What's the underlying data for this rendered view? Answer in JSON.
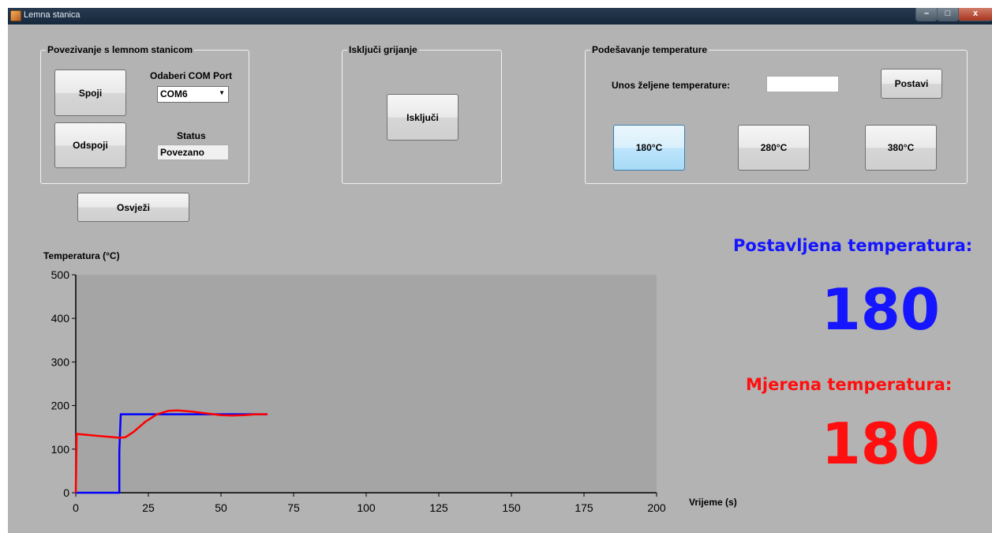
{
  "window": {
    "title": "Lemna stanica",
    "minimize": "–",
    "maximize": "□",
    "close": "x"
  },
  "connection_group": {
    "title": "Povezivanje s lemnom stanicom",
    "connect_button": "Spoji",
    "disconnect_button": "Odspoji",
    "com_port_label": "Odaberi COM Port",
    "com_port_value": "COM6",
    "status_label": "Status",
    "status_value": "Povezano"
  },
  "refresh_button": "Osvježi",
  "heater_group": {
    "title": "Isključi grijanje",
    "off_button": "Isključi"
  },
  "temperature_group": {
    "title": "Podešavanje temperature",
    "input_label": "Unos željene temperature:",
    "input_value": "",
    "set_button": "Postavi",
    "preset_buttons": [
      "180°C",
      "280°C",
      "380°C"
    ]
  },
  "readout": {
    "set_label": "Postavljena temperatura:",
    "set_value": "180",
    "set_color": "#1515ff",
    "measured_label": "Mjerena temperatura:",
    "measured_value": "180",
    "measured_color": "#ff0f0f"
  },
  "chart_data": {
    "type": "line",
    "ylabel": "Temperatura (°C)",
    "xlabel": "Vrijeme (s)",
    "xlim": [
      0,
      200
    ],
    "ylim": [
      0,
      500
    ],
    "xticks": [
      0,
      25,
      50,
      75,
      100,
      125,
      150,
      175,
      200
    ],
    "yticks": [
      0,
      100,
      200,
      300,
      400,
      500
    ],
    "plot_background": "#a5a5a5",
    "series": [
      {
        "color": "#0000ff",
        "points": [
          [
            0,
            0
          ],
          [
            15,
            0
          ],
          [
            15,
            95
          ],
          [
            15.5,
            180
          ],
          [
            66,
            180
          ]
        ]
      },
      {
        "color": "#ff0000",
        "points": [
          [
            0,
            0
          ],
          [
            0.3,
            135
          ],
          [
            5,
            132
          ],
          [
            10,
            129
          ],
          [
            15,
            126
          ],
          [
            17,
            127
          ],
          [
            20,
            140
          ],
          [
            24,
            163
          ],
          [
            28,
            180
          ],
          [
            32,
            188
          ],
          [
            35,
            189
          ],
          [
            40,
            186
          ],
          [
            45,
            182
          ],
          [
            50,
            178
          ],
          [
            54,
            177
          ],
          [
            58,
            178
          ],
          [
            62,
            180
          ],
          [
            66,
            180
          ]
        ]
      }
    ]
  }
}
